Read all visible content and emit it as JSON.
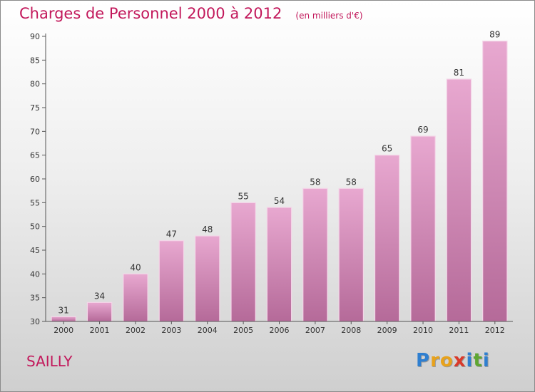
{
  "header": {
    "title": "Charges de Personnel 2000 à 2012",
    "subtitle": "(en milliers d'€)"
  },
  "footer": {
    "commune": "SAILLY",
    "brand_letters": [
      "P",
      "r",
      "o",
      "x",
      "i",
      "t",
      "i"
    ],
    "brand_colors": [
      "#2f7fd0",
      "#e8a21b",
      "#e8a21b",
      "#d93a2b",
      "#2f7fd0",
      "#5fa632",
      "#2f7fd0"
    ]
  },
  "colors": {
    "accent": "#c2185b",
    "bar_top": "#e8a8d0",
    "bar_bottom": "#b56a99",
    "bar_edge": "#f4d6e8"
  },
  "chart_data": {
    "type": "bar",
    "title": "Charges de Personnel 2000 à 2012",
    "subtitle": "(en milliers d'€)",
    "xlabel": "",
    "ylabel": "",
    "categories": [
      "2000",
      "2001",
      "2002",
      "2003",
      "2004",
      "2005",
      "2006",
      "2007",
      "2008",
      "2009",
      "2010",
      "2011",
      "2012"
    ],
    "values": [
      31,
      34,
      40,
      47,
      48,
      55,
      54,
      58,
      58,
      65,
      69,
      81,
      89
    ],
    "ylim": [
      30,
      90
    ],
    "yticks": [
      30,
      35,
      40,
      45,
      50,
      55,
      60,
      65,
      70,
      75,
      80,
      85,
      90
    ],
    "grid": false,
    "data_labels": true
  }
}
